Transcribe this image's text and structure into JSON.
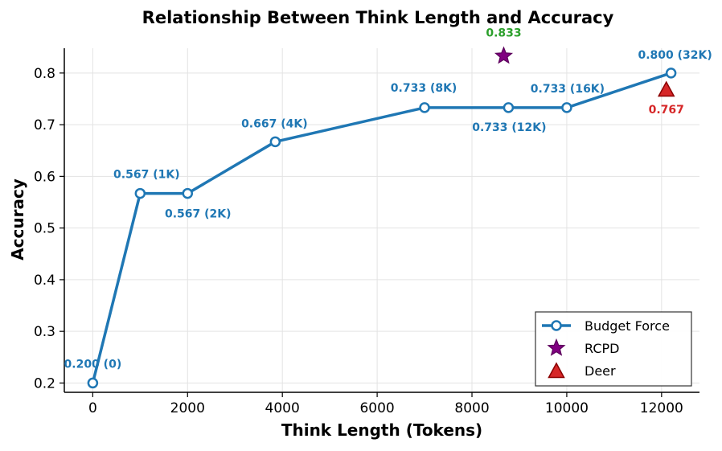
{
  "chart_data": {
    "type": "line",
    "title": "Relationship Between Think Length and Accuracy",
    "xlabel": "Think Length (Tokens)",
    "ylabel": "Accuracy",
    "xlim": [
      -600,
      12800
    ],
    "ylim": [
      0.182,
      0.848
    ],
    "xticks": [
      0,
      2000,
      4000,
      6000,
      8000,
      10000,
      12000
    ],
    "yticks": [
      0.2,
      0.3,
      0.4,
      0.5,
      0.6,
      0.7,
      0.8
    ],
    "xtick_labels": [
      "0",
      "2000",
      "4000",
      "6000",
      "8000",
      "10000",
      "12000"
    ],
    "ytick_labels": [
      "0.2",
      "0.3",
      "0.4",
      "0.5",
      "0.6",
      "0.7",
      "0.8"
    ],
    "grid": true,
    "legend_position": "bottom-right",
    "series": [
      {
        "name": "Budget Force",
        "kind": "line",
        "marker": "circle",
        "color": "#1f77b4",
        "points": [
          {
            "x": 0,
            "y": 0.2,
            "label": "0.200 (0)"
          },
          {
            "x": 1000,
            "y": 0.567,
            "label": "0.567 (1K)"
          },
          {
            "x": 2000,
            "y": 0.567,
            "label": "0.567 (2K)"
          },
          {
            "x": 3850,
            "y": 0.667,
            "label": "0.667 (4K)"
          },
          {
            "x": 7000,
            "y": 0.733,
            "label": "0.733 (8K)"
          },
          {
            "x": 8770,
            "y": 0.733,
            "label": "0.733 (12K)"
          },
          {
            "x": 10000,
            "y": 0.733,
            "label": "0.733 (16K)"
          },
          {
            "x": 12200,
            "y": 0.8,
            "label": "0.800 (32K)"
          }
        ]
      },
      {
        "name": "RCPD",
        "kind": "scatter",
        "marker": "star",
        "color": "#800080",
        "label_color": "#2ca02c",
        "points": [
          {
            "x": 8670,
            "y": 0.833,
            "label": "0.833"
          }
        ]
      },
      {
        "name": "Deer",
        "kind": "scatter",
        "marker": "triangle",
        "color": "#d62728",
        "label_color": "#d62728",
        "points": [
          {
            "x": 12100,
            "y": 0.767,
            "label": "0.767"
          }
        ]
      }
    ]
  }
}
